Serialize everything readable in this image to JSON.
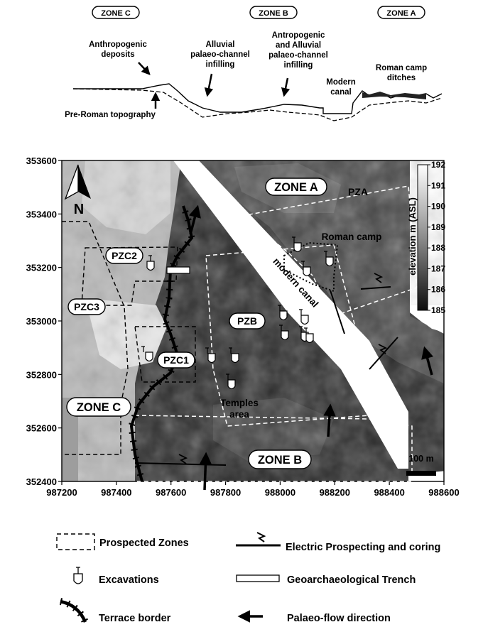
{
  "profile": {
    "zones": [
      "ZONE C",
      "ZONE B",
      "ZONE A"
    ],
    "annotations": {
      "anthropogenic": [
        "Anthropogenic",
        "deposits"
      ],
      "pre_roman": "Pre-Roman topography",
      "alluvial": [
        "Alluvial",
        "palaeo-channel",
        "infilling"
      ],
      "antropogenic_alluvial": [
        "Antropogenic",
        "and Alluvial",
        "palaeo-channel",
        "infilling"
      ],
      "modern_canal": [
        "Modern",
        "canal"
      ],
      "roman_camp_ditches": [
        "Roman camp",
        "ditches"
      ]
    }
  },
  "map": {
    "x_ticks": [
      "987200",
      "987400",
      "987600",
      "987800",
      "988000",
      "988200",
      "988400",
      "988600"
    ],
    "y_ticks": [
      "353600",
      "353400",
      "353200",
      "353000",
      "352800",
      "352600",
      "352400"
    ],
    "x_range": [
      987200,
      988600
    ],
    "y_range": [
      352400,
      353600
    ],
    "north": "N",
    "zone_labels": [
      "ZONE A",
      "ZONE B",
      "ZONE C"
    ],
    "prospect_labels": [
      "PZA",
      "PZB",
      "PZC1",
      "PZC2",
      "PZC3"
    ],
    "roman_camp": "Roman camp",
    "modern_canal": "modern canal",
    "temples": [
      "Temples",
      "area"
    ],
    "scale_bar": "100 m",
    "colorbar": {
      "title": "elevation m (ASL)",
      "ticks": [
        "192",
        "191",
        "190",
        "189",
        "188",
        "187",
        "186",
        "185"
      ],
      "min": 185,
      "max": 192
    }
  },
  "legend": {
    "prospected_zones": "Prospected Zones",
    "electric": "Electric Prospecting and coring",
    "excavations": "Excavations",
    "trench": "Geoarchaeological Trench",
    "terrace": "Terrace border",
    "palaeo_flow": "Palaeo-flow direction"
  }
}
